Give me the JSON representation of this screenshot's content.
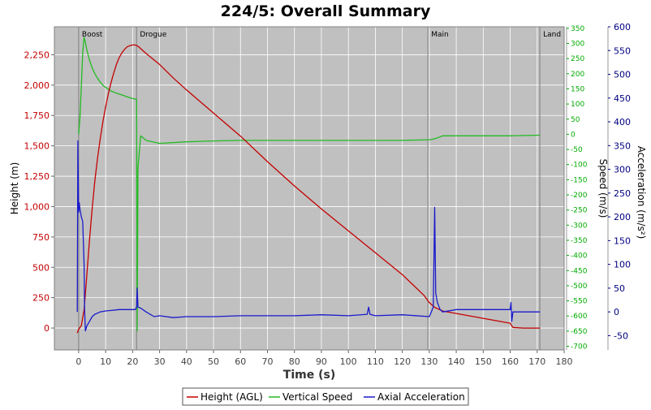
{
  "chart_data": {
    "type": "line",
    "title": "224/5: Overall Summary",
    "xlabel": "Time (s)",
    "xlim": [
      -9,
      180
    ],
    "xticks": [
      0,
      10,
      20,
      30,
      40,
      50,
      60,
      70,
      80,
      90,
      100,
      110,
      120,
      130,
      140,
      150,
      160,
      170,
      180
    ],
    "axes": {
      "height": {
        "label": "Height (m)",
        "color": "#c40000",
        "lim": [
          -180,
          2480
        ],
        "ticks": [
          0,
          250,
          500,
          750,
          1000,
          1250,
          1500,
          1750,
          2000,
          2250
        ],
        "tick_labels": [
          "0",
          "250",
          "500",
          "750",
          "1,000",
          "1,250",
          "1,500",
          "1,750",
          "2,000",
          "2,250"
        ]
      },
      "speed": {
        "label": "Speed (m/s)",
        "color": "#00aa00",
        "lim": [
          -712,
          355
        ],
        "ticks": [
          350,
          300,
          250,
          200,
          150,
          100,
          50,
          0,
          -50,
          -100,
          -150,
          -200,
          -250,
          -300,
          -350,
          -400,
          -450,
          -500,
          -550,
          -600,
          -650,
          -700
        ],
        "tick_labels": [
          "350",
          "300",
          "250",
          "200",
          "150",
          "100",
          "50",
          "0",
          "-50",
          "-100",
          "-150",
          "-200",
          "-250",
          "-300",
          "-350",
          "-400",
          "-450",
          "-500",
          "-550",
          "-600",
          "-650",
          "-700"
        ]
      },
      "accel": {
        "label": "Acceleration (m/s²)",
        "color": "#000080",
        "lim": [
          -80,
          600
        ],
        "ticks": [
          600,
          550,
          500,
          450,
          400,
          350,
          300,
          250,
          200,
          150,
          100,
          50,
          0,
          -50
        ],
        "tick_labels": [
          "600",
          "550",
          "500",
          "450",
          "400",
          "350",
          "300",
          "250",
          "200",
          "150",
          "100",
          "50",
          "0",
          "-50"
        ]
      }
    },
    "events": [
      {
        "label": "Boost",
        "x": 0
      },
      {
        "label": "Drogue",
        "x": 21.5
      },
      {
        "label": "Main",
        "x": 129.5
      },
      {
        "label": "Land",
        "x": 171
      }
    ],
    "series": [
      {
        "name": "Height (AGL)",
        "axis": "height",
        "color": "#c40000",
        "x": [
          -0.5,
          0,
          1,
          2,
          3,
          4,
          5,
          6,
          7,
          8,
          9,
          10,
          11,
          12,
          13,
          14,
          15,
          16,
          17,
          18,
          19,
          20,
          21,
          21.5,
          22,
          25,
          30,
          35,
          40,
          50,
          60,
          70,
          80,
          90,
          100,
          110,
          120,
          128,
          130,
          132,
          135,
          140,
          150,
          160,
          161,
          165,
          171
        ],
        "y": [
          -40,
          -10,
          20,
          150,
          430,
          720,
          980,
          1210,
          1400,
          1560,
          1700,
          1820,
          1930,
          2020,
          2100,
          2170,
          2225,
          2265,
          2295,
          2315,
          2325,
          2330,
          2330,
          2325,
          2320,
          2260,
          2170,
          2060,
          1960,
          1770,
          1580,
          1370,
          1170,
          980,
          800,
          620,
          440,
          270,
          210,
          170,
          140,
          120,
          80,
          40,
          5,
          0,
          0
        ]
      },
      {
        "name": "Vertical Speed",
        "axis": "speed",
        "color": "#22bb22",
        "x": [
          0,
          0.5,
          1,
          1.5,
          2,
          2.5,
          3,
          4,
          5,
          6,
          7,
          8,
          9,
          10,
          12,
          14,
          16,
          18,
          20,
          21.5,
          21.7,
          22,
          23,
          25,
          30,
          40,
          50,
          60,
          70,
          80,
          90,
          100,
          110,
          120,
          130,
          132,
          135,
          140,
          150,
          160,
          171
        ],
        "y": [
          0,
          60,
          160,
          270,
          320,
          305,
          280,
          245,
          220,
          200,
          185,
          172,
          162,
          155,
          143,
          136,
          130,
          124,
          118,
          115,
          -650,
          -110,
          -5,
          -20,
          -30,
          -25,
          -22,
          -20,
          -20,
          -20,
          -20,
          -20,
          -20,
          -20,
          -18,
          -15,
          -5,
          -5,
          -5,
          -5,
          -3
        ]
      },
      {
        "name": "Axial Acceleration",
        "axis": "accel",
        "color": "#1a1acc",
        "x": [
          -0.5,
          -0.3,
          0,
          0.2,
          0.5,
          1,
          1.5,
          2,
          2.2,
          2.5,
          3,
          4,
          5,
          6,
          8,
          10,
          12,
          15,
          18,
          21,
          21.5,
          21.7,
          22,
          23,
          25,
          28,
          30,
          35,
          40,
          50,
          60,
          70,
          80,
          90,
          100,
          107,
          107.5,
          108,
          110,
          120,
          130,
          131.5,
          132,
          132.4,
          133,
          134,
          135,
          140,
          150,
          160,
          160.3,
          160.6,
          161,
          165,
          171
        ],
        "y": [
          0,
          360,
          210,
          230,
          215,
          200,
          190,
          100,
          5,
          -40,
          -30,
          -20,
          -10,
          -5,
          0,
          2,
          3,
          5,
          5,
          5,
          10,
          50,
          10,
          8,
          0,
          -10,
          -8,
          -12,
          -10,
          -10,
          -8,
          -8,
          -8,
          -6,
          -8,
          -5,
          10,
          -5,
          -8,
          -6,
          -10,
          10,
          220,
          40,
          20,
          5,
          0,
          5,
          5,
          5,
          20,
          -20,
          0,
          0,
          0
        ]
      }
    ]
  }
}
